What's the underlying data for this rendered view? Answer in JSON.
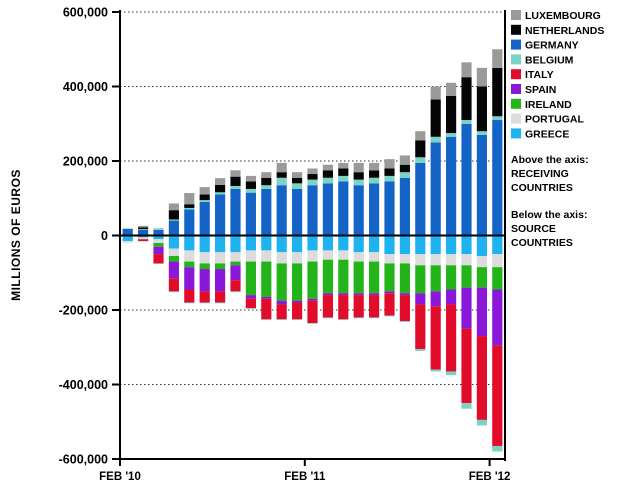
{
  "chart_data": {
    "type": "bar",
    "stacked": true,
    "diverging": true,
    "ylabel": "MILLIONS OF EUROS",
    "ylim": [
      -600000,
      600000
    ],
    "yticks": [
      600000,
      400000,
      200000,
      0,
      -200000,
      -400000,
      -600000
    ],
    "ytick_labels": [
      "600,000",
      "400,000",
      "200,000",
      "0",
      "-200,000",
      "-400,000",
      "-600,000"
    ],
    "xtick_labels": [
      {
        "index": 0,
        "label": "FEB '10"
      },
      {
        "index": 12,
        "label": "FEB '11"
      },
      {
        "index": 24,
        "label": "FEB '12"
      }
    ],
    "grid": "dotted horizontal",
    "legend_position": "right",
    "note_above": [
      "Above the axis:",
      "RECEIVING",
      "COUNTRIES"
    ],
    "note_below": [
      "Below the axis:",
      "SOURCE",
      "COUNTRIES"
    ],
    "categories": [
      "Feb '10",
      "Mar '10",
      "Apr '10",
      "May '10",
      "Jun '10",
      "Jul '10",
      "Aug '10",
      "Sep '10",
      "Oct '10",
      "Nov '10",
      "Dec '10",
      "Jan '11",
      "Feb '11",
      "Mar '11",
      "Apr '11",
      "May '11",
      "Jun '11",
      "Jul '11",
      "Aug '11",
      "Sep '11",
      "Oct '11",
      "Nov '11",
      "Dec '11",
      "Jan '12",
      "Feb '12"
    ],
    "series_positive": [
      {
        "name": "GERMANY",
        "color": "#1464c8",
        "values": [
          18000,
          15000,
          15000,
          40000,
          70000,
          90000,
          110000,
          125000,
          115000,
          125000,
          135000,
          125000,
          135000,
          140000,
          145000,
          135000,
          140000,
          145000,
          155000,
          195000,
          250000,
          265000,
          300000,
          270000,
          310000
        ]
      },
      {
        "name": "BELGIUM",
        "color": "#7ad3c5",
        "values": [
          1000,
          2000,
          2000,
          3000,
          4000,
          5000,
          6000,
          8000,
          10000,
          10000,
          20000,
          15000,
          15000,
          15000,
          15000,
          15000,
          15000,
          15000,
          15000,
          15000,
          15000,
          10000,
          10000,
          10000,
          10000
        ]
      },
      {
        "name": "NETHERLANDS",
        "color": "#050505",
        "values": [
          0,
          5000,
          0,
          25000,
          10000,
          15000,
          20000,
          25000,
          20000,
          20000,
          15000,
          15000,
          15000,
          20000,
          20000,
          20000,
          20000,
          20000,
          20000,
          45000,
          100000,
          100000,
          115000,
          120000,
          130000
        ]
      },
      {
        "name": "LUXEMBOURG",
        "color": "#9a9a9a",
        "values": [
          0,
          4000,
          2000,
          18000,
          30000,
          20000,
          18000,
          17000,
          15000,
          15000,
          25000,
          15000,
          15000,
          15000,
          15000,
          25000,
          20000,
          25000,
          25000,
          25000,
          35000,
          35000,
          40000,
          50000,
          50000
        ]
      }
    ],
    "series_negative": [
      {
        "name": "GREECE",
        "color": "#1eb2f0",
        "values": [
          -15000,
          -5000,
          -10000,
          -35000,
          -40000,
          -45000,
          -45000,
          -45000,
          -40000,
          -40000,
          -45000,
          -45000,
          -40000,
          -40000,
          -40000,
          -45000,
          -45000,
          -50000,
          -50000,
          -50000,
          -50000,
          -50000,
          -50000,
          -55000,
          -50000
        ]
      },
      {
        "name": "PORTUGAL",
        "color": "#dcdcdc",
        "values": [
          -3000,
          -5000,
          -10000,
          -20000,
          -30000,
          -30000,
          -30000,
          -25000,
          -30000,
          -30000,
          -30000,
          -30000,
          -30000,
          -25000,
          -25000,
          -25000,
          -25000,
          -25000,
          -25000,
          -30000,
          -30000,
          -30000,
          -30000,
          -30000,
          -35000
        ]
      },
      {
        "name": "IRELAND",
        "color": "#22b419",
        "values": [
          0,
          0,
          -10000,
          -15000,
          -15000,
          -15000,
          -15000,
          -10000,
          -90000,
          -95000,
          -100000,
          -100000,
          -100000,
          -90000,
          -90000,
          -85000,
          -85000,
          -75000,
          -80000,
          -75000,
          -70000,
          -65000,
          -60000,
          -55000,
          -60000
        ]
      },
      {
        "name": "SPAIN",
        "color": "#8b18d8",
        "values": [
          0,
          0,
          -20000,
          -45000,
          -60000,
          -60000,
          -60000,
          -40000,
          -10000,
          -5000,
          -10000,
          -5000,
          -5000,
          -5000,
          -5000,
          -5000,
          -5000,
          -5000,
          -5000,
          -30000,
          -40000,
          -40000,
          -110000,
          -130000,
          -150000
        ]
      },
      {
        "name": "ITALY",
        "color": "#e10b2a",
        "values": [
          0,
          -5000,
          -25000,
          -35000,
          -35000,
          -30000,
          -30000,
          -30000,
          -25000,
          -55000,
          -40000,
          -45000,
          -60000,
          -60000,
          -65000,
          -60000,
          -60000,
          -60000,
          -70000,
          -120000,
          -170000,
          -180000,
          -200000,
          -225000,
          -270000
        ]
      },
      {
        "name": "BELGIUM",
        "color": "#7ad3c5",
        "values": [
          -1000,
          -1000,
          -1000,
          -2000,
          -2000,
          -2000,
          -2000,
          -2000,
          -2000,
          -2000,
          -2000,
          -2000,
          -2000,
          -2000,
          -2000,
          -2000,
          -2000,
          -2000,
          -2000,
          -5000,
          -5000,
          -10000,
          -15000,
          -15000,
          -15000
        ]
      }
    ],
    "legend": [
      {
        "name": "LUXEMBOURG",
        "color": "#9a9a9a"
      },
      {
        "name": "NETHERLANDS",
        "color": "#050505"
      },
      {
        "name": "GERMANY",
        "color": "#1464c8"
      },
      {
        "name": "BELGIUM",
        "color": "#7ad3c5"
      },
      {
        "name": "ITALY",
        "color": "#e10b2a"
      },
      {
        "name": "SPAIN",
        "color": "#8b18d8"
      },
      {
        "name": "IRELAND",
        "color": "#22b419"
      },
      {
        "name": "PORTUGAL",
        "color": "#dcdcdc"
      },
      {
        "name": "GREECE",
        "color": "#1eb2f0"
      }
    ]
  }
}
